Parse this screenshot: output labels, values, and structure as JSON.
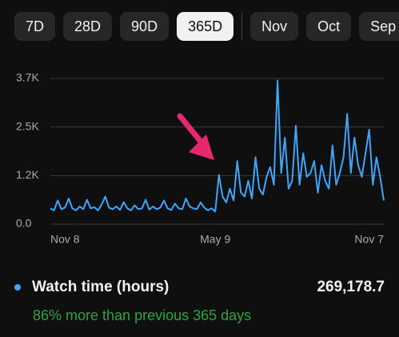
{
  "tabs": [
    "7D",
    "28D",
    "90D",
    "365D",
    "Nov",
    "Oct",
    "Sep"
  ],
  "selected_tab": 3,
  "chart_data": {
    "type": "line",
    "categories": [
      "Nov 8",
      null,
      null,
      null,
      null,
      null,
      null,
      null,
      null,
      null,
      null,
      null,
      null,
      null,
      null,
      null,
      null,
      null,
      null,
      null,
      null,
      null,
      null,
      null,
      null,
      null,
      null,
      null,
      null,
      null,
      null,
      null,
      null,
      null,
      null,
      null,
      null,
      null,
      null,
      null,
      null,
      null,
      null,
      null,
      null,
      "May 9",
      null,
      null,
      null,
      null,
      null,
      null,
      null,
      null,
      null,
      null,
      null,
      null,
      null,
      null,
      null,
      null,
      null,
      null,
      null,
      null,
      null,
      null,
      null,
      null,
      null,
      null,
      null,
      null,
      null,
      null,
      null,
      null,
      null,
      null,
      null,
      null,
      null,
      null,
      null,
      null,
      null,
      null,
      null,
      null,
      null,
      "Nov 7"
    ],
    "series": [
      {
        "name": "Watch time (hours)",
        "color": "#3ea6ff",
        "values": [
          400,
          350,
          600,
          380,
          420,
          650,
          400,
          350,
          450,
          380,
          620,
          400,
          430,
          350,
          500,
          700,
          420,
          380,
          450,
          360,
          560,
          400,
          350,
          480,
          380,
          400,
          620,
          370,
          450,
          380,
          420,
          600,
          400,
          360,
          520,
          400,
          380,
          650,
          450,
          400,
          380,
          550,
          420,
          350,
          400,
          320,
          1250,
          700,
          550,
          900,
          600,
          1600,
          800,
          700,
          1100,
          650,
          1700,
          900,
          750,
          1200,
          1450,
          1000,
          3650,
          1300,
          2200,
          900,
          1100,
          2500,
          1000,
          1800,
          1200,
          1300,
          1600,
          800,
          1500,
          1100,
          900,
          2000,
          1000,
          1300,
          1700,
          2800,
          1300,
          2200,
          1500,
          1200,
          1800,
          2400,
          1000,
          1700,
          1200,
          600
        ]
      }
    ],
    "ylim": [
      0,
      3700
    ],
    "yticks": [
      {
        "value": 0,
        "label": "0.0"
      },
      {
        "value": 1233,
        "label": "1.2K"
      },
      {
        "value": 2467,
        "label": "2.5K"
      },
      {
        "value": 3700,
        "label": "3.7K"
      }
    ],
    "grid": true
  },
  "summary": {
    "total": "269,178.7",
    "comparison": "86% more than previous 365 days"
  }
}
